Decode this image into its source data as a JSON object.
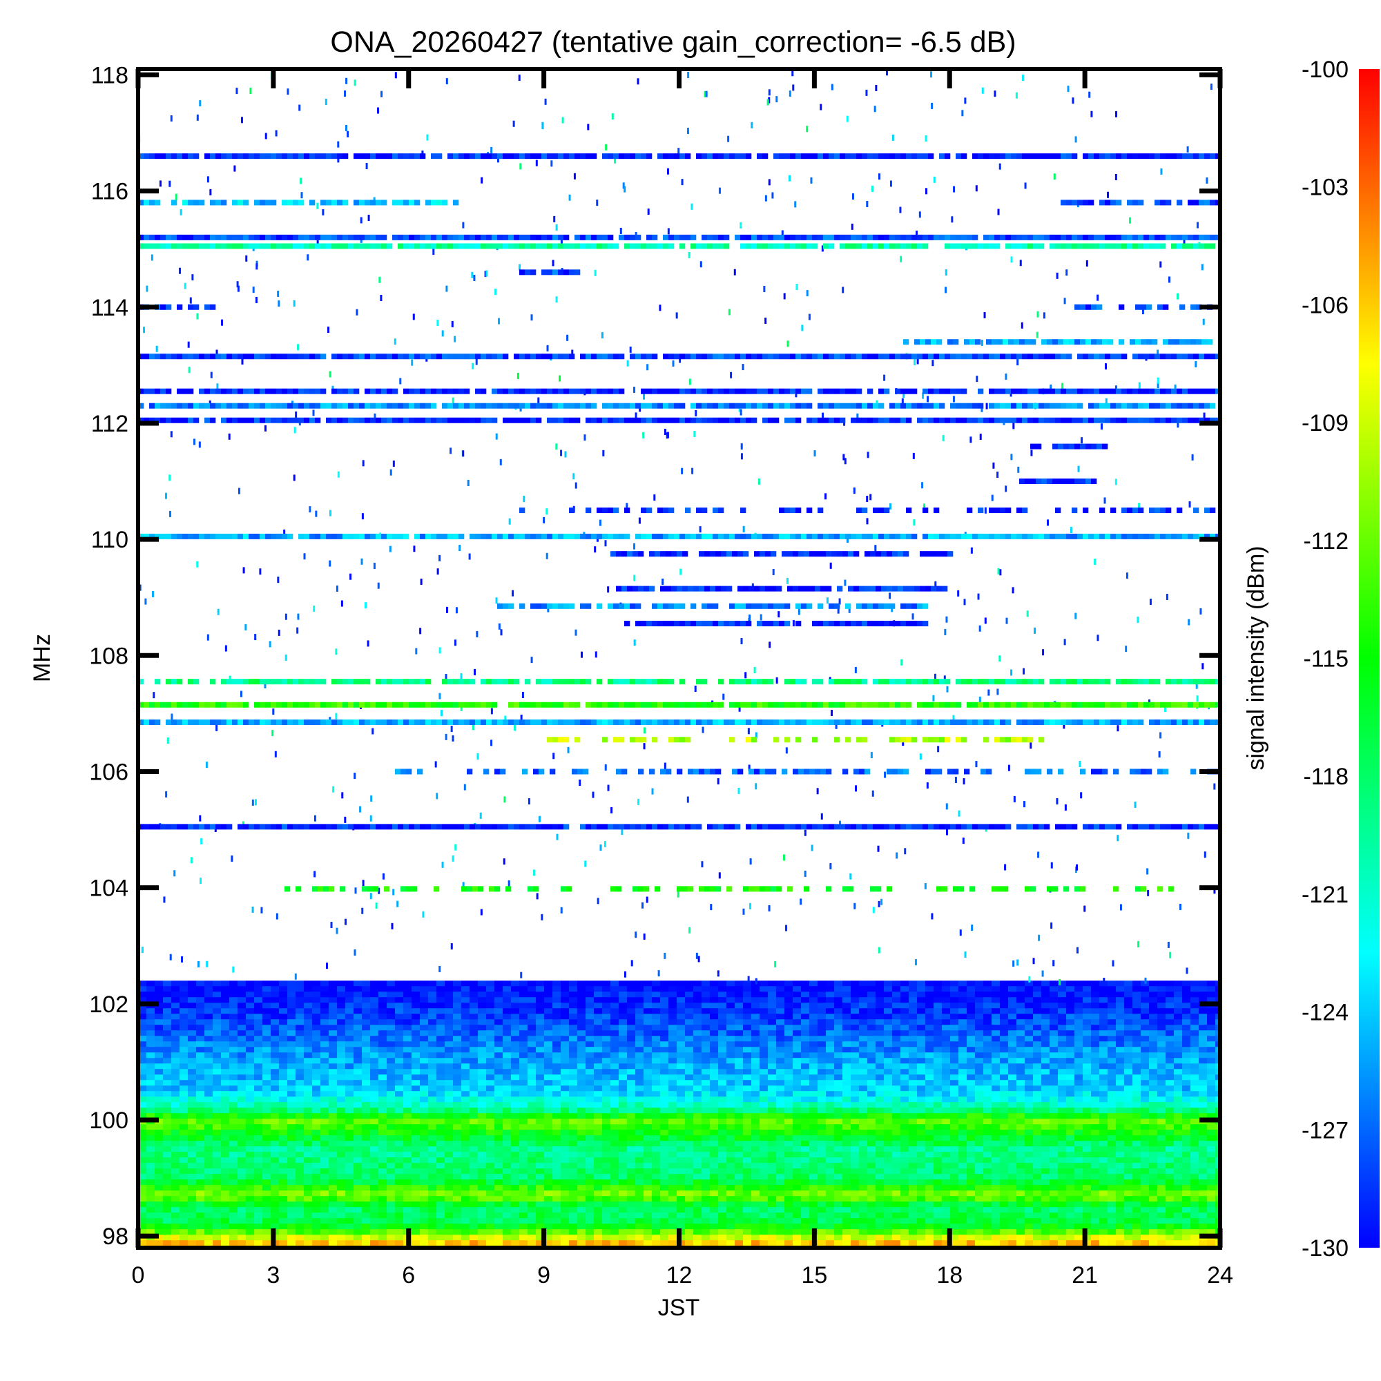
{
  "chart_data": {
    "type": "heatmap",
    "title": "ONA_20260427 (tentative gain_correction= -6.5 dB)",
    "xlabel": "JST",
    "ylabel": "MHz",
    "colorbar_label": "signal intensity (dBm)",
    "xlim": [
      0,
      24
    ],
    "ylim": [
      97.8,
      118.1
    ],
    "x_ticks": [
      "0",
      "3",
      "6",
      "9",
      "12",
      "15",
      "18",
      "21",
      "24"
    ],
    "y_ticks": [
      "98",
      "100",
      "102",
      "104",
      "106",
      "108",
      "110",
      "112",
      "114",
      "116",
      "118"
    ],
    "color_range": [
      -130,
      -100
    ],
    "colorbar_ticks": [
      "-100",
      "-103",
      "-106",
      "-109",
      "-112",
      "-115",
      "-118",
      "-121",
      "-124",
      "-127",
      "-130"
    ],
    "colormap": [
      "#0000ff",
      "#00ffff",
      "#00ff00",
      "#ffff00",
      "#ff0000"
    ],
    "bands": [
      {
        "freq": 116.6,
        "start": 0,
        "end": 24,
        "level": -129,
        "density": 0.92
      },
      {
        "freq": 115.8,
        "start": 0,
        "end": 7.2,
        "level": -124,
        "density": 0.8
      },
      {
        "freq": 115.8,
        "start": 20.5,
        "end": 24,
        "level": -128,
        "density": 0.7
      },
      {
        "freq": 115.2,
        "start": 0,
        "end": 24,
        "level": -128,
        "density": 0.95
      },
      {
        "freq": 115.05,
        "start": 0,
        "end": 24,
        "level": -120,
        "density": 0.95
      },
      {
        "freq": 114.6,
        "start": 8.5,
        "end": 9.8,
        "level": -128,
        "density": 0.9
      },
      {
        "freq": 114.0,
        "start": 0,
        "end": 1.6,
        "level": -128,
        "density": 0.8
      },
      {
        "freq": 114.0,
        "start": 20.8,
        "end": 23.8,
        "level": -128,
        "density": 0.75
      },
      {
        "freq": 113.4,
        "start": 17,
        "end": 24,
        "level": -125,
        "density": 0.8
      },
      {
        "freq": 113.15,
        "start": 0,
        "end": 24,
        "level": -128,
        "density": 0.95
      },
      {
        "freq": 112.55,
        "start": 0,
        "end": 24,
        "level": -129,
        "density": 0.9
      },
      {
        "freq": 112.3,
        "start": 0,
        "end": 24,
        "level": -126,
        "density": 0.95
      },
      {
        "freq": 112.05,
        "start": 0,
        "end": 24,
        "level": -129,
        "density": 0.95
      },
      {
        "freq": 111.6,
        "start": 19.8,
        "end": 21.5,
        "level": -129,
        "density": 0.9
      },
      {
        "freq": 111.0,
        "start": 19.6,
        "end": 21.2,
        "level": -129,
        "density": 0.9
      },
      {
        "freq": 110.5,
        "start": 8.5,
        "end": 24,
        "level": -129,
        "density": 0.5
      },
      {
        "freq": 110.05,
        "start": 0,
        "end": 24,
        "level": -125,
        "density": 0.97
      },
      {
        "freq": 109.75,
        "start": 10.5,
        "end": 18,
        "level": -129,
        "density": 0.9
      },
      {
        "freq": 109.15,
        "start": 10.6,
        "end": 17.9,
        "level": -129,
        "density": 0.92
      },
      {
        "freq": 108.85,
        "start": 8,
        "end": 17.5,
        "level": -126,
        "density": 0.75
      },
      {
        "freq": 108.55,
        "start": 10.8,
        "end": 17.5,
        "level": -129,
        "density": 0.9
      },
      {
        "freq": 107.55,
        "start": 0,
        "end": 24,
        "level": -119,
        "density": 0.85
      },
      {
        "freq": 107.15,
        "start": 0,
        "end": 24,
        "level": -114,
        "density": 0.97
      },
      {
        "freq": 106.85,
        "start": 0,
        "end": 24,
        "level": -125,
        "density": 0.97
      },
      {
        "freq": 106.55,
        "start": 9,
        "end": 20,
        "level": -110,
        "density": 0.5
      },
      {
        "freq": 106.0,
        "start": 5.5,
        "end": 24,
        "level": -127,
        "density": 0.5
      },
      {
        "freq": 105.05,
        "start": 0,
        "end": 24,
        "level": -129,
        "density": 0.97
      },
      {
        "freq": 103.98,
        "start": 3.3,
        "end": 23,
        "level": -115,
        "density": 0.4
      }
    ],
    "continuum": {
      "from": 97.8,
      "to": 102.4,
      "profile": [
        {
          "freq": 97.9,
          "level": -106
        },
        {
          "freq": 98.2,
          "level": -117
        },
        {
          "freq": 98.5,
          "level": -118
        },
        {
          "freq": 98.7,
          "level": -111
        },
        {
          "freq": 99.0,
          "level": -118
        },
        {
          "freq": 99.5,
          "level": -119
        },
        {
          "freq": 100.0,
          "level": -112
        },
        {
          "freq": 100.2,
          "level": -120
        },
        {
          "freq": 100.5,
          "level": -124
        },
        {
          "freq": 101.0,
          "level": -125
        },
        {
          "freq": 101.5,
          "level": -127
        },
        {
          "freq": 102.0,
          "level": -129
        },
        {
          "freq": 102.4,
          "level": -130
        }
      ]
    },
    "scatter_density": 0.05
  }
}
